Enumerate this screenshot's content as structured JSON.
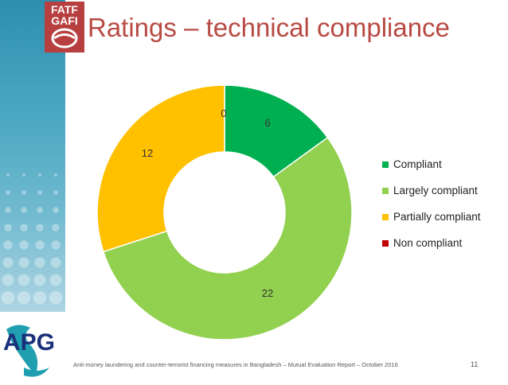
{
  "slide": {
    "title": "Ratings – technical compliance",
    "footer": "Anti-money laundering and counter-terrorist financing measures in Bangladesh – Mutual Evaluation Report – October 2016",
    "page_number": "11"
  },
  "logos": {
    "fatf_line1": "FATF",
    "fatf_line2": "GAFI",
    "apg": "APG"
  },
  "colors": {
    "title": "#b84a43",
    "compliant": "#00b050",
    "largely_compliant": "#92d050",
    "partially_compliant": "#ffc000",
    "non_compliant": "#c00000"
  },
  "chart_data": {
    "type": "pie",
    "donut": true,
    "categories": [
      "Compliant",
      "Largely compliant",
      "Partially compliant",
      "Non compliant"
    ],
    "values": [
      6,
      22,
      12,
      0
    ],
    "colors": [
      "#00b050",
      "#92d050",
      "#ffc000",
      "#c00000"
    ],
    "data_labels": [
      "6",
      "22",
      "12",
      "0"
    ],
    "legend_position": "right"
  }
}
